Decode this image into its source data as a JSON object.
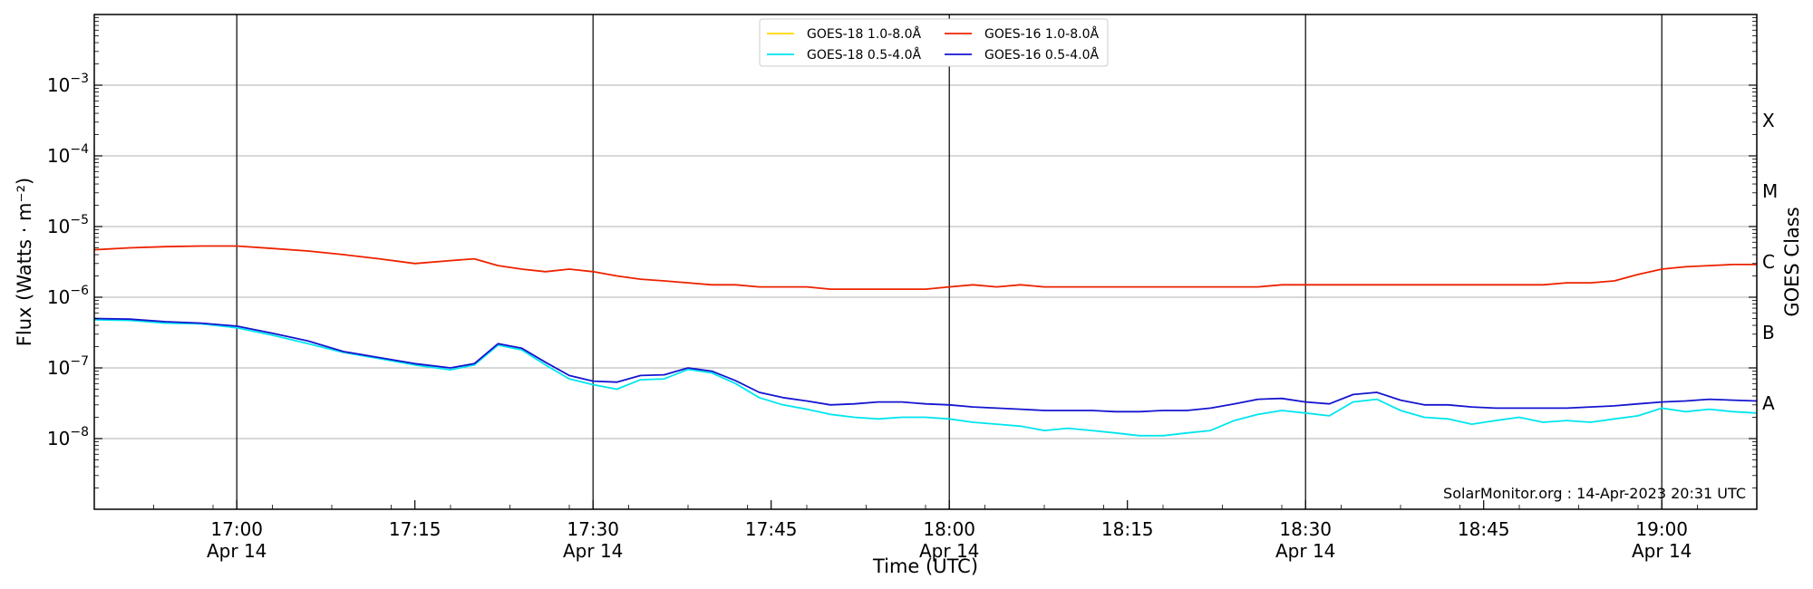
{
  "chart_data": {
    "type": "line",
    "xlabel": "Time (UTC)",
    "ylabel": "Flux (Watts · m⁻²)",
    "right_label": "GOES Class",
    "credit": "SolarMonitor.org : 14-Apr-2023 20:31 UTC",
    "x_range": [
      "16:48",
      "19:08"
    ],
    "ylim": [
      1e-09,
      0.01
    ],
    "y_scale": "log",
    "grid": "horizontal",
    "legend_position": "top-center",
    "x_ticks": [
      {
        "time": "17:00",
        "label": "17:00",
        "sub": "Apr 14",
        "vline": true
      },
      {
        "time": "17:15",
        "label": "17:15",
        "sub": "",
        "vline": false
      },
      {
        "time": "17:30",
        "label": "17:30",
        "sub": "Apr 14",
        "vline": true
      },
      {
        "time": "17:45",
        "label": "17:45",
        "sub": "",
        "vline": false
      },
      {
        "time": "18:00",
        "label": "18:00",
        "sub": "Apr 14",
        "vline": true
      },
      {
        "time": "18:15",
        "label": "18:15",
        "sub": "",
        "vline": false
      },
      {
        "time": "18:30",
        "label": "18:30",
        "sub": "Apr 14",
        "vline": true
      },
      {
        "time": "18:45",
        "label": "18:45",
        "sub": "",
        "vline": false
      },
      {
        "time": "19:00",
        "label": "19:00",
        "sub": "Apr 14",
        "vline": true
      }
    ],
    "y_ticks": [
      {
        "value": 0.001,
        "mantissa": "10",
        "exp": "−3"
      },
      {
        "value": 0.0001,
        "mantissa": "10",
        "exp": "−4"
      },
      {
        "value": 1e-05,
        "mantissa": "10",
        "exp": "−5"
      },
      {
        "value": 1e-06,
        "mantissa": "10",
        "exp": "−6"
      },
      {
        "value": 1e-07,
        "mantissa": "10",
        "exp": "−7"
      },
      {
        "value": 1e-08,
        "mantissa": "10",
        "exp": "−8"
      }
    ],
    "class_labels": [
      {
        "label": "X",
        "value": 0.000316
      },
      {
        "label": "M",
        "value": 3.16e-05
      },
      {
        "label": "C",
        "value": 3.16e-06
      },
      {
        "label": "B",
        "value": 3.16e-07
      },
      {
        "label": "A",
        "value": 3.16e-08
      }
    ],
    "series": [
      {
        "name": "GOES-18 1.0-8.0Å",
        "color": "#ffd700",
        "legend_col": 0,
        "legend_row": 0,
        "points": []
      },
      {
        "name": "GOES-18 0.5-4.0Å",
        "color": "#00e5ee",
        "legend_col": 0,
        "legend_row": 1,
        "points": [
          [
            "16:48",
            4.8e-07
          ],
          [
            "16:51",
            4.7e-07
          ],
          [
            "16:54",
            4.3e-07
          ],
          [
            "16:57",
            4.2e-07
          ],
          [
            "17:00",
            3.7e-07
          ],
          [
            "17:03",
            2.9e-07
          ],
          [
            "17:06",
            2.2e-07
          ],
          [
            "17:09",
            1.65e-07
          ],
          [
            "17:12",
            1.35e-07
          ],
          [
            "17:15",
            1.1e-07
          ],
          [
            "17:18",
            9.4e-08
          ],
          [
            "17:20",
            1.1e-07
          ],
          [
            "17:22",
            2.1e-07
          ],
          [
            "17:24",
            1.8e-07
          ],
          [
            "17:26",
            1.1e-07
          ],
          [
            "17:28",
            7e-08
          ],
          [
            "17:30",
            5.8e-08
          ],
          [
            "17:32",
            5e-08
          ],
          [
            "17:34",
            6.8e-08
          ],
          [
            "17:36",
            7e-08
          ],
          [
            "17:38",
            9.5e-08
          ],
          [
            "17:40",
            8.5e-08
          ],
          [
            "17:42",
            6e-08
          ],
          [
            "17:44",
            3.8e-08
          ],
          [
            "17:46",
            3e-08
          ],
          [
            "17:48",
            2.6e-08
          ],
          [
            "17:50",
            2.2e-08
          ],
          [
            "17:52",
            2e-08
          ],
          [
            "17:54",
            1.9e-08
          ],
          [
            "17:56",
            2e-08
          ],
          [
            "17:58",
            2e-08
          ],
          [
            "18:00",
            1.9e-08
          ],
          [
            "18:02",
            1.7e-08
          ],
          [
            "18:04",
            1.6e-08
          ],
          [
            "18:06",
            1.5e-08
          ],
          [
            "18:08",
            1.3e-08
          ],
          [
            "18:10",
            1.4e-08
          ],
          [
            "18:12",
            1.3e-08
          ],
          [
            "18:14",
            1.2e-08
          ],
          [
            "18:16",
            1.1e-08
          ],
          [
            "18:18",
            1.1e-08
          ],
          [
            "18:20",
            1.2e-08
          ],
          [
            "18:22",
            1.3e-08
          ],
          [
            "18:24",
            1.8e-08
          ],
          [
            "18:26",
            2.2e-08
          ],
          [
            "18:28",
            2.5e-08
          ],
          [
            "18:30",
            2.3e-08
          ],
          [
            "18:32",
            2.1e-08
          ],
          [
            "18:34",
            3.3e-08
          ],
          [
            "18:36",
            3.6e-08
          ],
          [
            "18:38",
            2.5e-08
          ],
          [
            "18:40",
            2e-08
          ],
          [
            "18:42",
            1.9e-08
          ],
          [
            "18:44",
            1.6e-08
          ],
          [
            "18:46",
            1.8e-08
          ],
          [
            "18:48",
            2e-08
          ],
          [
            "18:50",
            1.7e-08
          ],
          [
            "18:52",
            1.8e-08
          ],
          [
            "18:54",
            1.7e-08
          ],
          [
            "18:56",
            1.9e-08
          ],
          [
            "18:58",
            2.1e-08
          ],
          [
            "19:00",
            2.7e-08
          ],
          [
            "19:02",
            2.4e-08
          ],
          [
            "19:04",
            2.6e-08
          ],
          [
            "19:06",
            2.4e-08
          ],
          [
            "19:08",
            2.3e-08
          ]
        ]
      },
      {
        "name": "GOES-16 1.0-8.0Å",
        "color": "#ee2200",
        "legend_col": 1,
        "legend_row": 0,
        "points": [
          [
            "16:48",
            4.7e-06
          ],
          [
            "16:51",
            5e-06
          ],
          [
            "16:54",
            5.2e-06
          ],
          [
            "16:57",
            5.3e-06
          ],
          [
            "17:00",
            5.3e-06
          ],
          [
            "17:03",
            4.9e-06
          ],
          [
            "17:06",
            4.5e-06
          ],
          [
            "17:09",
            4e-06
          ],
          [
            "17:12",
            3.5e-06
          ],
          [
            "17:15",
            3e-06
          ],
          [
            "17:18",
            3.3e-06
          ],
          [
            "17:20",
            3.5e-06
          ],
          [
            "17:22",
            2.8e-06
          ],
          [
            "17:24",
            2.5e-06
          ],
          [
            "17:26",
            2.3e-06
          ],
          [
            "17:28",
            2.5e-06
          ],
          [
            "17:30",
            2.3e-06
          ],
          [
            "17:32",
            2e-06
          ],
          [
            "17:34",
            1.8e-06
          ],
          [
            "17:36",
            1.7e-06
          ],
          [
            "17:38",
            1.6e-06
          ],
          [
            "17:40",
            1.5e-06
          ],
          [
            "17:42",
            1.5e-06
          ],
          [
            "17:44",
            1.4e-06
          ],
          [
            "17:46",
            1.4e-06
          ],
          [
            "17:48",
            1.4e-06
          ],
          [
            "17:50",
            1.3e-06
          ],
          [
            "17:52",
            1.3e-06
          ],
          [
            "17:54",
            1.3e-06
          ],
          [
            "17:56",
            1.3e-06
          ],
          [
            "17:58",
            1.3e-06
          ],
          [
            "18:00",
            1.4e-06
          ],
          [
            "18:02",
            1.5e-06
          ],
          [
            "18:04",
            1.4e-06
          ],
          [
            "18:06",
            1.5e-06
          ],
          [
            "18:08",
            1.4e-06
          ],
          [
            "18:10",
            1.4e-06
          ],
          [
            "18:12",
            1.4e-06
          ],
          [
            "18:14",
            1.4e-06
          ],
          [
            "18:16",
            1.4e-06
          ],
          [
            "18:18",
            1.4e-06
          ],
          [
            "18:20",
            1.4e-06
          ],
          [
            "18:22",
            1.4e-06
          ],
          [
            "18:24",
            1.4e-06
          ],
          [
            "18:26",
            1.4e-06
          ],
          [
            "18:28",
            1.5e-06
          ],
          [
            "18:30",
            1.5e-06
          ],
          [
            "18:32",
            1.5e-06
          ],
          [
            "18:34",
            1.5e-06
          ],
          [
            "18:36",
            1.5e-06
          ],
          [
            "18:38",
            1.5e-06
          ],
          [
            "18:40",
            1.5e-06
          ],
          [
            "18:42",
            1.5e-06
          ],
          [
            "18:44",
            1.5e-06
          ],
          [
            "18:46",
            1.5e-06
          ],
          [
            "18:48",
            1.5e-06
          ],
          [
            "18:50",
            1.5e-06
          ],
          [
            "18:52",
            1.6e-06
          ],
          [
            "18:54",
            1.6e-06
          ],
          [
            "18:56",
            1.7e-06
          ],
          [
            "18:58",
            2.1e-06
          ],
          [
            "19:00",
            2.5e-06
          ],
          [
            "19:02",
            2.7e-06
          ],
          [
            "19:04",
            2.8e-06
          ],
          [
            "19:06",
            2.9e-06
          ],
          [
            "19:08",
            2.9e-06
          ]
        ]
      },
      {
        "name": "GOES-16 0.5-4.0Å",
        "color": "#1515d0",
        "legend_col": 1,
        "legend_row": 1,
        "points": [
          [
            "16:48",
            5e-07
          ],
          [
            "16:51",
            4.9e-07
          ],
          [
            "16:54",
            4.5e-07
          ],
          [
            "16:57",
            4.3e-07
          ],
          [
            "17:00",
            3.9e-07
          ],
          [
            "17:03",
            3.1e-07
          ],
          [
            "17:06",
            2.4e-07
          ],
          [
            "17:09",
            1.7e-07
          ],
          [
            "17:12",
            1.4e-07
          ],
          [
            "17:15",
            1.15e-07
          ],
          [
            "17:18",
            1e-07
          ],
          [
            "17:20",
            1.15e-07
          ],
          [
            "17:22",
            2.2e-07
          ],
          [
            "17:24",
            1.9e-07
          ],
          [
            "17:26",
            1.2e-07
          ],
          [
            "17:28",
            7.8e-08
          ],
          [
            "17:30",
            6.5e-08
          ],
          [
            "17:32",
            6.3e-08
          ],
          [
            "17:34",
            7.8e-08
          ],
          [
            "17:36",
            8e-08
          ],
          [
            "17:38",
            1e-07
          ],
          [
            "17:40",
            9e-08
          ],
          [
            "17:42",
            6.6e-08
          ],
          [
            "17:44",
            4.5e-08
          ],
          [
            "17:46",
            3.8e-08
          ],
          [
            "17:48",
            3.4e-08
          ],
          [
            "17:50",
            3e-08
          ],
          [
            "17:52",
            3.1e-08
          ],
          [
            "17:54",
            3.3e-08
          ],
          [
            "17:56",
            3.3e-08
          ],
          [
            "17:58",
            3.1e-08
          ],
          [
            "18:00",
            3e-08
          ],
          [
            "18:02",
            2.8e-08
          ],
          [
            "18:04",
            2.7e-08
          ],
          [
            "18:06",
            2.6e-08
          ],
          [
            "18:08",
            2.5e-08
          ],
          [
            "18:10",
            2.5e-08
          ],
          [
            "18:12",
            2.5e-08
          ],
          [
            "18:14",
            2.4e-08
          ],
          [
            "18:16",
            2.4e-08
          ],
          [
            "18:18",
            2.5e-08
          ],
          [
            "18:20",
            2.5e-08
          ],
          [
            "18:22",
            2.7e-08
          ],
          [
            "18:24",
            3.1e-08
          ],
          [
            "18:26",
            3.6e-08
          ],
          [
            "18:28",
            3.7e-08
          ],
          [
            "18:30",
            3.3e-08
          ],
          [
            "18:32",
            3.1e-08
          ],
          [
            "18:34",
            4.2e-08
          ],
          [
            "18:36",
            4.5e-08
          ],
          [
            "18:38",
            3.5e-08
          ],
          [
            "18:40",
            3e-08
          ],
          [
            "18:42",
            3e-08
          ],
          [
            "18:44",
            2.8e-08
          ],
          [
            "18:46",
            2.7e-08
          ],
          [
            "18:48",
            2.7e-08
          ],
          [
            "18:50",
            2.7e-08
          ],
          [
            "18:52",
            2.7e-08
          ],
          [
            "18:54",
            2.8e-08
          ],
          [
            "18:56",
            2.9e-08
          ],
          [
            "18:58",
            3.1e-08
          ],
          [
            "19:00",
            3.3e-08
          ],
          [
            "19:02",
            3.4e-08
          ],
          [
            "19:04",
            3.6e-08
          ],
          [
            "19:06",
            3.5e-08
          ],
          [
            "19:08",
            3.4e-08
          ]
        ]
      }
    ]
  }
}
